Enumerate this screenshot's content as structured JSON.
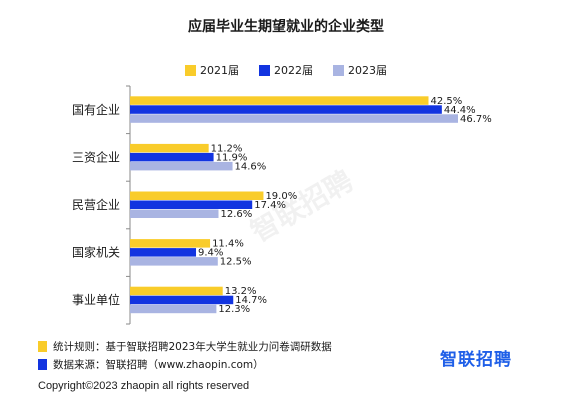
{
  "title": "应届毕业生期望就业的企业类型",
  "colors": {
    "2021届": "#f9cc2a",
    "2022届": "#1234e0",
    "2023届": "#a9b4e2",
    "axis": "#8a8a8a"
  },
  "chart_data": {
    "type": "bar",
    "orientation": "horizontal",
    "title": "应届毕业生期望就业的企业类型",
    "categories": [
      "国有企业",
      "三资企业",
      "民营企业",
      "国家机关",
      "事业单位"
    ],
    "series": [
      {
        "name": "2021届",
        "values": [
          42.5,
          11.2,
          19.0,
          11.4,
          13.2
        ]
      },
      {
        "name": "2022届",
        "values": [
          44.4,
          11.9,
          17.4,
          9.4,
          14.7
        ]
      },
      {
        "name": "2023届",
        "values": [
          46.7,
          14.6,
          12.6,
          12.5,
          12.3
        ]
      }
    ],
    "value_suffix": "%",
    "xlim": [
      0,
      50
    ],
    "legend_position": "top",
    "grid": false
  },
  "footnotes": [
    {
      "text": "统计规则：基于智联招聘2023年大学生就业力问卷调研数据",
      "color": "#f9cc2a"
    },
    {
      "text": "数据来源：智联招聘（www.zhaopin.com）",
      "color": "#1234e0"
    }
  ],
  "brand_logo": "智联招聘",
  "watermark": "智联招聘",
  "copyright": "Copyright©2023 zhaopin all rights reserved"
}
